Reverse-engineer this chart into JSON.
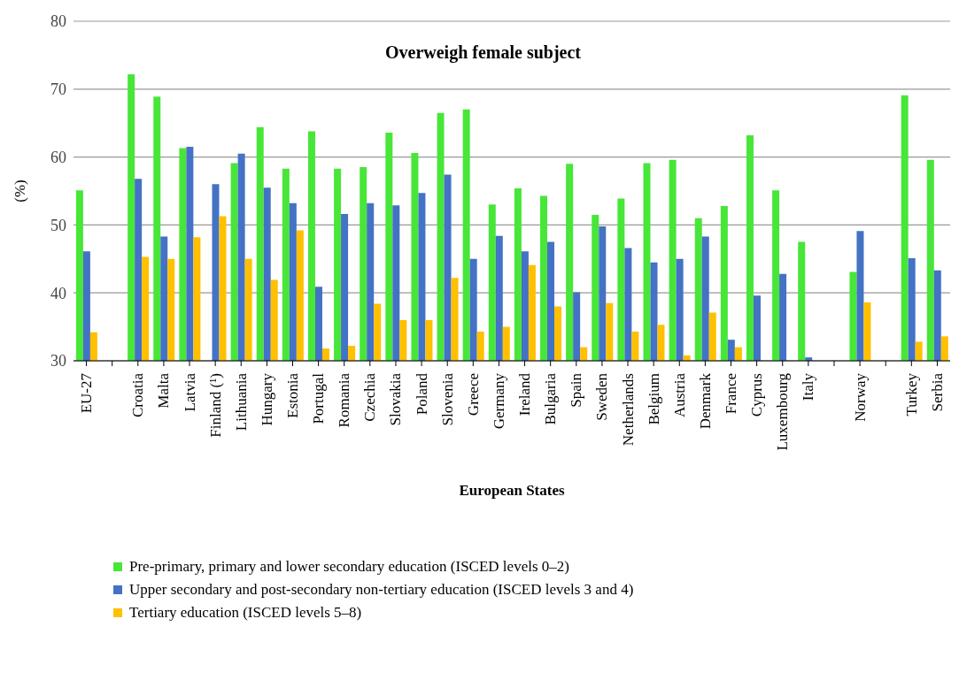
{
  "chart_data": {
    "type": "bar",
    "title": "Overweigh female subject",
    "xlabel": "European States",
    "ylabel": "(%)",
    "categories": [
      "EU-27",
      null,
      "Croatia",
      "Malta",
      "Latvia",
      "Finland (¹)",
      "Lithuania",
      "Hungary",
      "Estonia",
      "Portugal",
      "Romania",
      "Czechia",
      "Slovakia",
      "Poland",
      "Slovenia",
      "Greece",
      "Germany",
      "Ireland",
      "Bulgaria",
      "Spain",
      "Sweden",
      "Netherlands",
      "Belgium",
      "Austria",
      "Denmark",
      "France",
      "Cyprus",
      "Luxembourg",
      "Italy",
      null,
      "Norway",
      null,
      "Turkey",
      "Serbia"
    ],
    "series": [
      {
        "name": "Pre-primary, primary and lower secondary education (ISCED levels 0–2)",
        "color": "#47e639",
        "values": [
          55.1,
          null,
          72.2,
          68.9,
          61.3,
          null,
          59.1,
          64.4,
          58.3,
          63.8,
          58.3,
          58.5,
          63.6,
          60.6,
          66.5,
          67.0,
          53.0,
          55.4,
          54.3,
          59.0,
          51.5,
          53.9,
          59.1,
          59.6,
          51.0,
          52.8,
          63.2,
          55.1,
          47.5,
          null,
          43.1,
          null,
          69.1,
          59.6
        ]
      },
      {
        "name": "Upper secondary and post-secondary non-tertiary education (ISCED levels 3 and 4)",
        "color": "#4472c4",
        "values": [
          46.1,
          null,
          56.8,
          48.3,
          61.5,
          56.0,
          60.5,
          55.5,
          53.2,
          40.9,
          51.6,
          53.2,
          52.9,
          54.7,
          57.4,
          45.0,
          48.4,
          46.1,
          47.5,
          40.1,
          49.8,
          46.6,
          44.5,
          45.0,
          48.3,
          33.1,
          39.6,
          42.8,
          30.5,
          null,
          49.1,
          null,
          45.1,
          43.3
        ]
      },
      {
        "name": "Tertiary education (ISCED levels 5–8)",
        "color": "#ffc000",
        "values": [
          34.2,
          null,
          45.3,
          45.0,
          48.2,
          51.3,
          45.0,
          41.9,
          49.2,
          31.8,
          32.2,
          38.4,
          36.0,
          36.0,
          42.2,
          34.3,
          35.0,
          44.1,
          38.0,
          32.0,
          38.5,
          34.3,
          35.3,
          30.8,
          37.1,
          32.0,
          30,
          30,
          30,
          null,
          38.6,
          null,
          32.8,
          33.6
        ]
      }
    ],
    "ylim": [
      30,
      80
    ],
    "yticks": [
      30,
      40,
      50,
      60,
      70,
      80
    ],
    "grid": "y",
    "legend": "bottom"
  }
}
